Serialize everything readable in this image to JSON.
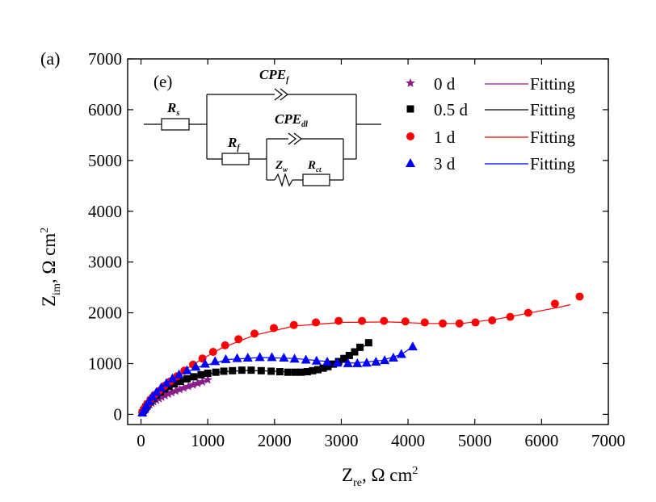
{
  "panel_label": "(a)",
  "circuit": {
    "label": "(e)",
    "rs_main": "R",
    "rs_sub": "s",
    "cpef_main": "CPE",
    "cpef_sub": "f",
    "rf_main": "R",
    "rf_sub": "f",
    "cpedl_main": "CPE",
    "cpedl_sub": "dl",
    "zw_main": "Z",
    "zw_sub": "w",
    "rct_main": "R",
    "rct_sub": "ct"
  },
  "chart_data": {
    "type": "scatter",
    "xlabel": "Z_re, Ω cm^2",
    "ylabel": "Z_im, Ω cm^2",
    "xlabel_parts": {
      "main": "Z",
      "sub": "re",
      "rest": ", Ω cm",
      "sup": "2"
    },
    "ylabel_parts": {
      "main": "Z",
      "sub": "im",
      "rest": ", Ω cm",
      "sup": "2"
    },
    "xlim": [
      -200,
      7000
    ],
    "ylim": [
      -200,
      7000
    ],
    "xticks": [
      0,
      1000,
      2000,
      3000,
      4000,
      5000,
      6000,
      7000
    ],
    "yticks": [
      0,
      1000,
      2000,
      3000,
      4000,
      5000,
      6000,
      7000
    ],
    "legend_position": "top-right",
    "series": [
      {
        "name": "0 d",
        "marker": "star",
        "color": "#8B1A8B",
        "fit_label": "Fitting",
        "points": [
          [
            20,
            20
          ],
          [
            40,
            60
          ],
          [
            60,
            100
          ],
          [
            80,
            130
          ],
          [
            100,
            160
          ],
          [
            130,
            190
          ],
          [
            160,
            220
          ],
          [
            190,
            250
          ],
          [
            230,
            280
          ],
          [
            270,
            310
          ],
          [
            310,
            340
          ],
          [
            360,
            370
          ],
          [
            410,
            400
          ],
          [
            460,
            430
          ],
          [
            520,
            460
          ],
          [
            580,
            490
          ],
          [
            640,
            520
          ],
          [
            710,
            550
          ],
          [
            780,
            580
          ],
          [
            850,
            610
          ],
          [
            920,
            640
          ],
          [
            1000,
            680
          ]
        ],
        "fit": [
          [
            0,
            0
          ],
          [
            20,
            30
          ],
          [
            60,
            100
          ],
          [
            120,
            175
          ],
          [
            200,
            240
          ],
          [
            300,
            310
          ],
          [
            420,
            385
          ],
          [
            560,
            460
          ],
          [
            720,
            540
          ],
          [
            880,
            610
          ],
          [
            1020,
            680
          ]
        ]
      },
      {
        "name": "0.5 d",
        "marker": "square",
        "color": "#000000",
        "fit_label": "Fitting",
        "points": [
          [
            20,
            30
          ],
          [
            40,
            80
          ],
          [
            70,
            140
          ],
          [
            100,
            200
          ],
          [
            140,
            260
          ],
          [
            180,
            320
          ],
          [
            230,
            380
          ],
          [
            290,
            440
          ],
          [
            350,
            500
          ],
          [
            420,
            550
          ],
          [
            500,
            600
          ],
          [
            590,
            650
          ],
          [
            690,
            700
          ],
          [
            790,
            740
          ],
          [
            900,
            780
          ],
          [
            1000,
            810
          ],
          [
            1120,
            830
          ],
          [
            1240,
            850
          ],
          [
            1370,
            860
          ],
          [
            1510,
            870
          ],
          [
            1650,
            870
          ],
          [
            1800,
            860
          ],
          [
            1950,
            850
          ],
          [
            2080,
            840
          ],
          [
            2200,
            830
          ],
          [
            2310,
            830
          ],
          [
            2400,
            830
          ],
          [
            2490,
            840
          ],
          [
            2570,
            860
          ],
          [
            2650,
            880
          ],
          [
            2730,
            910
          ],
          [
            2800,
            940
          ],
          [
            2880,
            990
          ],
          [
            2960,
            1040
          ],
          [
            3040,
            1100
          ],
          [
            3120,
            1160
          ],
          [
            3200,
            1230
          ],
          [
            3280,
            1320
          ],
          [
            3410,
            1410
          ]
        ],
        "fit": [
          [
            0,
            0
          ],
          [
            40,
            80
          ],
          [
            120,
            240
          ],
          [
            250,
            400
          ],
          [
            420,
            560
          ],
          [
            650,
            690
          ],
          [
            900,
            780
          ],
          [
            1200,
            840
          ],
          [
            1600,
            865
          ],
          [
            2000,
            850
          ],
          [
            2300,
            830
          ],
          [
            2600,
            860
          ],
          [
            2900,
            980
          ],
          [
            3200,
            1230
          ],
          [
            3450,
            1430
          ]
        ]
      },
      {
        "name": "1 d",
        "marker": "circle",
        "color": "#FF0000",
        "fit_label": "Fitting",
        "points": [
          [
            20,
            40
          ],
          [
            50,
            120
          ],
          [
            90,
            200
          ],
          [
            140,
            290
          ],
          [
            200,
            380
          ],
          [
            270,
            460
          ],
          [
            350,
            560
          ],
          [
            440,
            650
          ],
          [
            540,
            750
          ],
          [
            650,
            860
          ],
          [
            780,
            980
          ],
          [
            920,
            1100
          ],
          [
            1080,
            1230
          ],
          [
            1260,
            1360
          ],
          [
            1460,
            1480
          ],
          [
            1700,
            1590
          ],
          [
            1990,
            1700
          ],
          [
            2290,
            1760
          ],
          [
            2620,
            1810
          ],
          [
            2960,
            1840
          ],
          [
            3310,
            1840
          ],
          [
            3640,
            1840
          ],
          [
            3960,
            1830
          ],
          [
            4250,
            1810
          ],
          [
            4520,
            1790
          ],
          [
            4770,
            1790
          ],
          [
            5010,
            1810
          ],
          [
            5260,
            1850
          ],
          [
            5530,
            1920
          ],
          [
            5800,
            2000
          ],
          [
            6200,
            2180
          ],
          [
            6570,
            2320
          ]
        ],
        "fit": [
          [
            0,
            0
          ],
          [
            60,
            150
          ],
          [
            150,
            320
          ],
          [
            300,
            520
          ],
          [
            500,
            730
          ],
          [
            800,
            1000
          ],
          [
            1200,
            1300
          ],
          [
            1700,
            1560
          ],
          [
            2300,
            1740
          ],
          [
            3000,
            1810
          ],
          [
            3700,
            1820
          ],
          [
            4300,
            1790
          ],
          [
            4800,
            1790
          ],
          [
            5300,
            1870
          ],
          [
            5800,
            1990
          ],
          [
            6300,
            2120
          ],
          [
            6430,
            2160
          ]
        ]
      },
      {
        "name": "3 d",
        "marker": "triangle",
        "color": "#0000FF",
        "fit_label": "Fitting",
        "points": [
          [
            20,
            40
          ],
          [
            50,
            110
          ],
          [
            80,
            180
          ],
          [
            120,
            260
          ],
          [
            170,
            350
          ],
          [
            230,
            440
          ],
          [
            300,
            530
          ],
          [
            380,
            620
          ],
          [
            470,
            710
          ],
          [
            570,
            790
          ],
          [
            690,
            870
          ],
          [
            820,
            940
          ],
          [
            960,
            1000
          ],
          [
            1110,
            1050
          ],
          [
            1270,
            1090
          ],
          [
            1440,
            1110
          ],
          [
            1600,
            1120
          ],
          [
            1780,
            1130
          ],
          [
            1960,
            1130
          ],
          [
            2140,
            1120
          ],
          [
            2300,
            1100
          ],
          [
            2470,
            1080
          ],
          [
            2630,
            1060
          ],
          [
            2790,
            1040
          ],
          [
            2940,
            1020
          ],
          [
            3100,
            1010
          ],
          [
            3240,
            1010
          ],
          [
            3380,
            1020
          ],
          [
            3520,
            1040
          ],
          [
            3650,
            1070
          ],
          [
            3780,
            1120
          ],
          [
            3900,
            1190
          ],
          [
            4070,
            1340
          ]
        ],
        "fit": [
          [
            0,
            0
          ],
          [
            60,
            140
          ],
          [
            160,
            330
          ],
          [
            320,
            560
          ],
          [
            560,
            770
          ],
          [
            880,
            940
          ],
          [
            1300,
            1080
          ],
          [
            1800,
            1120
          ],
          [
            2300,
            1100
          ],
          [
            2800,
            1040
          ],
          [
            3200,
            1010
          ],
          [
            3600,
            1060
          ],
          [
            3900,
            1180
          ],
          [
            4100,
            1360
          ]
        ]
      }
    ]
  }
}
